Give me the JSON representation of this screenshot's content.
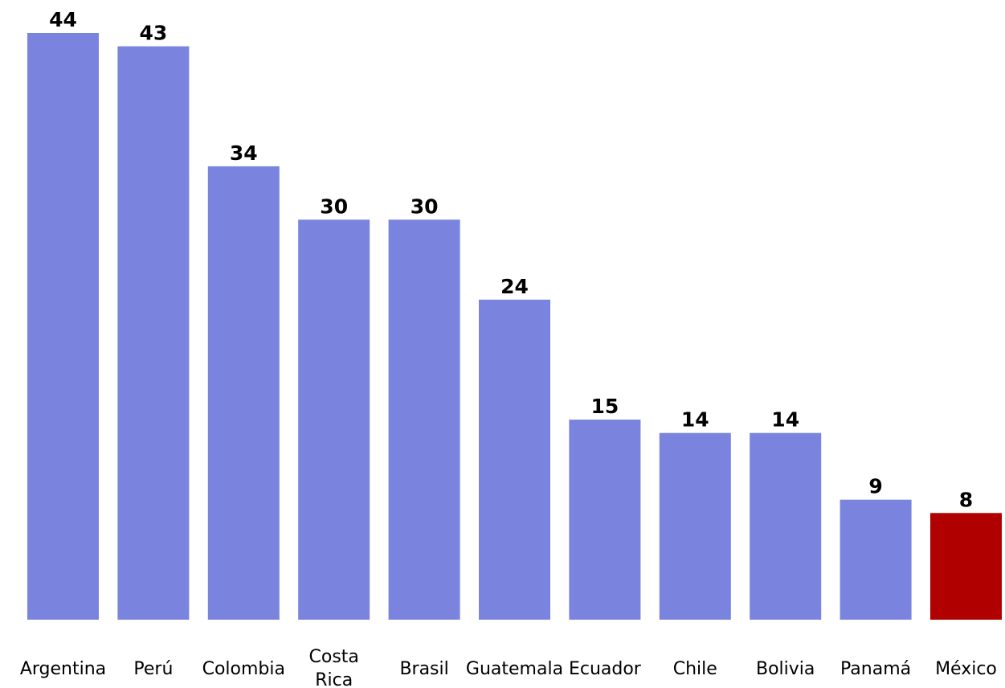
{
  "chart_data": {
    "type": "bar",
    "categories": [
      "Argentina",
      "Perú",
      "Colombia",
      "Costa Rica",
      "Brasil",
      "Guatemala",
      "Ecuador",
      "Chile",
      "Bolivia",
      "Panamá",
      "México"
    ],
    "category_lines": [
      [
        "Argentina"
      ],
      [
        "Perú"
      ],
      [
        "Colombia"
      ],
      [
        "Costa",
        "Rica"
      ],
      [
        "Brasil"
      ],
      [
        "Guatemala"
      ],
      [
        "Ecuador"
      ],
      [
        "Chile"
      ],
      [
        "Bolivia"
      ],
      [
        "Panamá"
      ],
      [
        "México"
      ]
    ],
    "values": [
      44,
      43,
      34,
      30,
      30,
      24,
      15,
      14,
      14,
      9,
      8
    ],
    "title": "",
    "xlabel": "",
    "ylabel": "",
    "ylim": [
      0,
      44
    ],
    "grid": false,
    "data_labels": true,
    "colors": {
      "default_bar": "#7a84df",
      "highlight_bar": "#b00000",
      "highlight_category": "México"
    }
  }
}
